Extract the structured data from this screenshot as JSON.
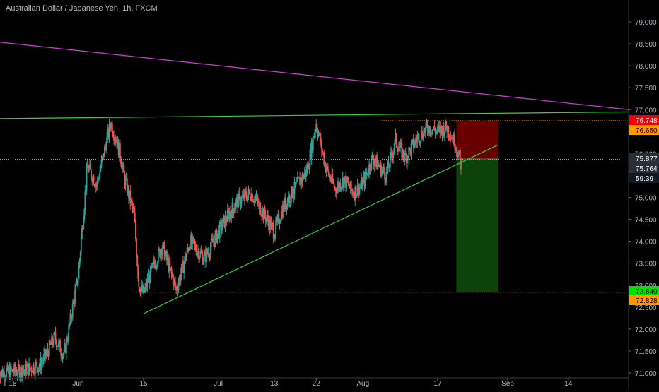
{
  "title": "Australian Dollar / Japanese Yen, 1h, FXCM",
  "chart_data": {
    "type": "candlestick",
    "symbol": "Australian Dollar / Japanese Yen",
    "interval": "1h",
    "exchange": "FXCM",
    "ylim": [
      71.0,
      79.5
    ],
    "y_ticks": [
      "79.000",
      "78.500",
      "78.000",
      "77.500",
      "77.000",
      "76.500",
      "76.000",
      "75.500",
      "75.000",
      "74.500",
      "74.000",
      "73.500",
      "73.000",
      "72.500",
      "72.000",
      "71.500",
      "71.000"
    ],
    "x_ticks": [
      "18",
      "Jun",
      "15",
      "Jul",
      "13",
      "22",
      "Aug",
      "17",
      "Sep",
      "14"
    ],
    "price_markers": [
      {
        "label": "76.748",
        "value": 76.748,
        "bg": "#e8000b",
        "fg": "#ffffff"
      },
      {
        "label": "76.650",
        "value": 76.65,
        "bg": "#ff9800",
        "fg": "#000000"
      },
      {
        "label": "75.877",
        "value": 75.877,
        "bg": "#2a2e39",
        "fg": "#ffffff"
      },
      {
        "label": "75.764",
        "value": 75.764,
        "bg": "#2a2e39",
        "fg": "#ffffff"
      },
      {
        "label": "59:39",
        "value": 75.55,
        "bg": "#131722",
        "fg": "#ffffff"
      },
      {
        "label": "72.840",
        "value": 72.84,
        "bg": "#00e000",
        "fg": "#000000"
      },
      {
        "label": "72.828",
        "value": 72.828,
        "bg": "#ff9800",
        "fg": "#000000"
      }
    ],
    "trendlines": [
      {
        "name": "resistance-line-magenta",
        "color": "#d63cd6",
        "from": [
          "2019-05-01",
          78.7
        ],
        "to": [
          "2019-09-27",
          77.0
        ]
      },
      {
        "name": "resistance-line-green",
        "color": "#3ad13a",
        "from": [
          "2019-05-01",
          76.78
        ],
        "to": [
          "2019-09-27",
          76.95
        ]
      },
      {
        "name": "support-line-green",
        "color": "#3ad13a",
        "from": [
          "2019-06-15",
          72.35
        ],
        "to": [
          "2019-08-30",
          76.2
        ]
      }
    ],
    "horizontal_levels": [
      {
        "value": 72.84,
        "color": "#ff9800",
        "style": "dotted"
      },
      {
        "value": 76.75,
        "color": "#ff9800",
        "style": "dotted"
      },
      {
        "value": 75.87,
        "color": "#9e9e9e",
        "style": "dotted"
      }
    ],
    "position": {
      "type": "short",
      "entry": 75.877,
      "stop": 76.748,
      "target": 72.84,
      "stop_zone_color": "#7a0000",
      "target_zone_color": "#0c4a0c"
    },
    "colors": {
      "up": "#26a69a",
      "down": "#ef5350",
      "background": "#000000"
    }
  }
}
